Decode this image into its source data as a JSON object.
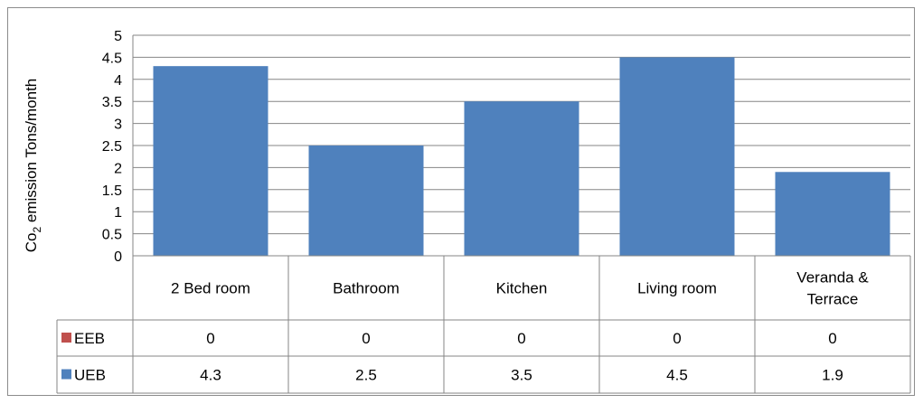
{
  "chart_data": {
    "type": "bar",
    "categories": [
      "2 Bed room",
      "Bathroom",
      "Kitchen",
      "Living room",
      "Veranda & Terrace"
    ],
    "category_lines": [
      [
        "2 Bed room"
      ],
      [
        "Bathroom"
      ],
      [
        "Kitchen"
      ],
      [
        "Living room"
      ],
      [
        "Veranda &",
        "Terrace"
      ]
    ],
    "series": [
      {
        "name": "EEB",
        "values": [
          0,
          0,
          0,
          0,
          0
        ],
        "display": [
          "0",
          "0",
          "0",
          "0",
          "0"
        ],
        "color": "#c0504d"
      },
      {
        "name": "UEB",
        "values": [
          4.3,
          2.5,
          3.5,
          4.5,
          1.9
        ],
        "display": [
          "4.3",
          "2.5",
          "3.5",
          "4.5",
          "1.9"
        ],
        "color": "#4f81bd"
      }
    ],
    "ylabel": {
      "main": "Co",
      "sub": "2",
      "rest": " emission Tons/month"
    },
    "ylim": [
      0,
      5
    ],
    "yticks": [
      "0",
      "0.5",
      "1",
      "1.5",
      "2",
      "2.5",
      "3",
      "3.5",
      "4",
      "4.5",
      "5"
    ],
    "grid": true,
    "legend": "data-table"
  }
}
